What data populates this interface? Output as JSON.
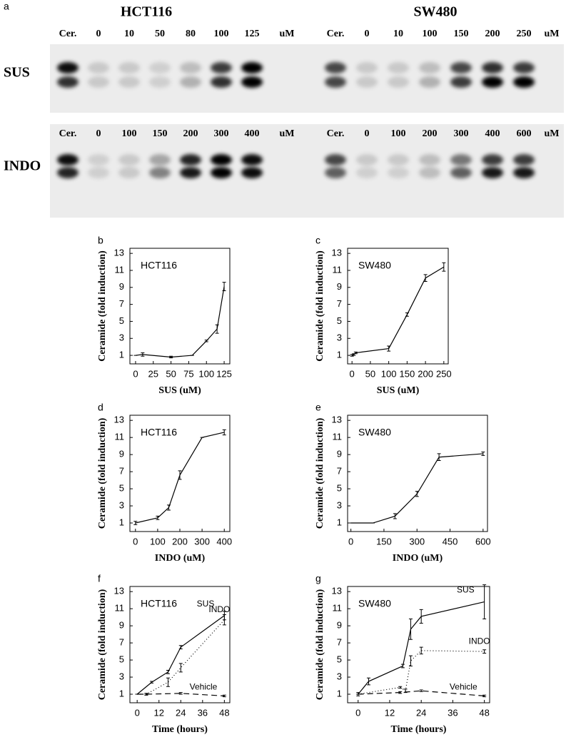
{
  "panel_a": {
    "label": "a",
    "cell_lines": [
      "HCT116",
      "SW480"
    ],
    "drugs": [
      "SUS",
      "INDO"
    ],
    "unit": "uM",
    "lanes": [
      [
        [
          "Cer.",
          "0",
          "10",
          "50",
          "80",
          "100",
          "125"
        ],
        [
          "Cer.",
          "0",
          "10",
          "100",
          "150",
          "200",
          "250"
        ]
      ],
      [
        [
          "Cer.",
          "0",
          "100",
          "150",
          "200",
          "300",
          "400"
        ],
        [
          "Cer.",
          "0",
          "100",
          "200",
          "300",
          "400",
          "600"
        ]
      ]
    ]
  },
  "chart_data": [
    {
      "type": "line",
      "panel_label": "b",
      "annotation": "HCT116",
      "xlabel": "SUS (uM)",
      "ylabel": "Ceramide (fold induction)",
      "x": [
        0,
        10,
        50,
        80,
        100,
        115,
        125
      ],
      "values": [
        1,
        1.1,
        0.8,
        1,
        2.7,
        4.1,
        9.1
      ],
      "errors": [
        0,
        0.2,
        0.1,
        0,
        0.1,
        0.5,
        0.5
      ],
      "color": "#000000",
      "xlim": [
        -8,
        133
      ],
      "xticks": [
        0,
        25,
        50,
        75,
        100,
        125
      ],
      "ylim": [
        0,
        13.6
      ],
      "yticks": [
        1,
        3,
        5,
        7,
        9,
        11,
        13
      ]
    },
    {
      "type": "line",
      "panel_label": "c",
      "annotation": "SW480",
      "xlabel": "SUS (uM)",
      "ylabel": "Ceramide (fold induction)",
      "x": [
        0,
        5,
        10,
        100,
        150,
        200,
        250
      ],
      "values": [
        1,
        1.1,
        1.3,
        1.8,
        5.8,
        10.1,
        11.4
      ],
      "errors": [
        0.1,
        0.1,
        0.1,
        0.3,
        0.2,
        0.4,
        0.5
      ],
      "color": "#000000",
      "xlim": [
        -12,
        262
      ],
      "xticks": [
        0,
        50,
        100,
        150,
        200,
        250
      ],
      "ylim": [
        0,
        13.6
      ],
      "yticks": [
        1,
        3,
        5,
        7,
        9,
        11,
        13
      ]
    },
    {
      "type": "line",
      "panel_label": "d",
      "annotation": "HCT116",
      "xlabel": "INDO (uM)",
      "ylabel": "Ceramide (fold induction)",
      "x": [
        0,
        100,
        150,
        200,
        300,
        400
      ],
      "values": [
        1,
        1.6,
        2.8,
        6.6,
        11,
        11.6
      ],
      "errors": [
        0.2,
        0.2,
        0.3,
        0.5,
        0,
        0.3
      ],
      "color": "#000000",
      "xlim": [
        -25,
        425
      ],
      "xticks": [
        0,
        100,
        200,
        300,
        400
      ],
      "ylim": [
        0,
        13.6
      ],
      "yticks": [
        1,
        3,
        5,
        7,
        9,
        11,
        13
      ]
    },
    {
      "type": "line",
      "panel_label": "e",
      "annotation": "SW480",
      "xlabel": "INDO (uM)",
      "ylabel": "Ceramide (fold induction)",
      "x": [
        0,
        100,
        200,
        300,
        400,
        600
      ],
      "values": [
        1,
        1,
        1.8,
        4.4,
        8.7,
        9.1
      ],
      "errors": [
        0,
        0,
        0.3,
        0.3,
        0.4,
        0.2
      ],
      "color": "#000000",
      "xlim": [
        -15,
        620
      ],
      "xticks": [
        0,
        150,
        300,
        450,
        600
      ],
      "ylim": [
        0,
        13.6
      ],
      "yticks": [
        1,
        3,
        5,
        7,
        9,
        11,
        13
      ]
    },
    {
      "type": "line",
      "panel_label": "f",
      "annotation": "HCT116",
      "xlabel": "Time (hours)",
      "ylabel": "Ceramide (fold induction)",
      "xlim": [
        -4,
        51
      ],
      "xticks": [
        0,
        12,
        24,
        36,
        48
      ],
      "ylim": [
        0,
        13.6
      ],
      "yticks": [
        1,
        3,
        5,
        7,
        9,
        11,
        13
      ],
      "series": [
        {
          "name": "SUS",
          "color": "#000000",
          "line_style": "solid",
          "x": [
            0,
            8,
            17,
            24,
            48
          ],
          "values": [
            1,
            2.4,
            3.6,
            6.5,
            10.2
          ],
          "errors": [
            0,
            0.1,
            0.2,
            0.2,
            0.5
          ]
        },
        {
          "name": "INDO",
          "color": "#000000",
          "line_style": "dotted",
          "x": [
            0,
            5,
            17,
            24,
            48
          ],
          "values": [
            1,
            1,
            2.4,
            4.1,
            9.7
          ],
          "errors": [
            0,
            0.1,
            0.5,
            0.5,
            0.6
          ]
        },
        {
          "name": "Vehicle",
          "color": "#000000",
          "line_style": "dashed",
          "x": [
            0,
            5,
            24,
            48
          ],
          "values": [
            1,
            1,
            1.1,
            0.8
          ],
          "errors": [
            0,
            0.1,
            0.1,
            0.1
          ]
        }
      ]
    },
    {
      "type": "line",
      "panel_label": "g",
      "annotation": "SW480",
      "xlabel": "Time (hours)",
      "ylabel": "Ceramide (fold induction)",
      "xlim": [
        -4,
        50
      ],
      "xticks": [
        0,
        12,
        24,
        36,
        48
      ],
      "ylim": [
        0,
        13.6
      ],
      "yticks": [
        1,
        3,
        5,
        7,
        9,
        11,
        13
      ],
      "series": [
        {
          "name": "SUS",
          "color": "#000000",
          "line_style": "solid",
          "x": [
            0,
            4,
            17,
            20,
            24,
            48
          ],
          "values": [
            1,
            2.5,
            4.3,
            8.6,
            10.1,
            11.8
          ],
          "errors": [
            0.2,
            0.4,
            0.2,
            1.2,
            0.8,
            2
          ]
        },
        {
          "name": "INDO",
          "color": "#000000",
          "line_style": "dotted",
          "x": [
            0,
            16,
            18,
            20,
            24,
            48
          ],
          "values": [
            1,
            1.8,
            1.4,
            4.9,
            6.1,
            6
          ],
          "errors": [
            0,
            0.1,
            0.2,
            0.6,
            0.4,
            0.2
          ]
        },
        {
          "name": "Vehicle",
          "color": "#000000",
          "line_style": "dashed",
          "x": [
            0,
            16,
            24,
            48
          ],
          "values": [
            1,
            1.2,
            1.4,
            0.8
          ],
          "errors": [
            0,
            0.1,
            0.1,
            0.1
          ]
        }
      ]
    }
  ]
}
